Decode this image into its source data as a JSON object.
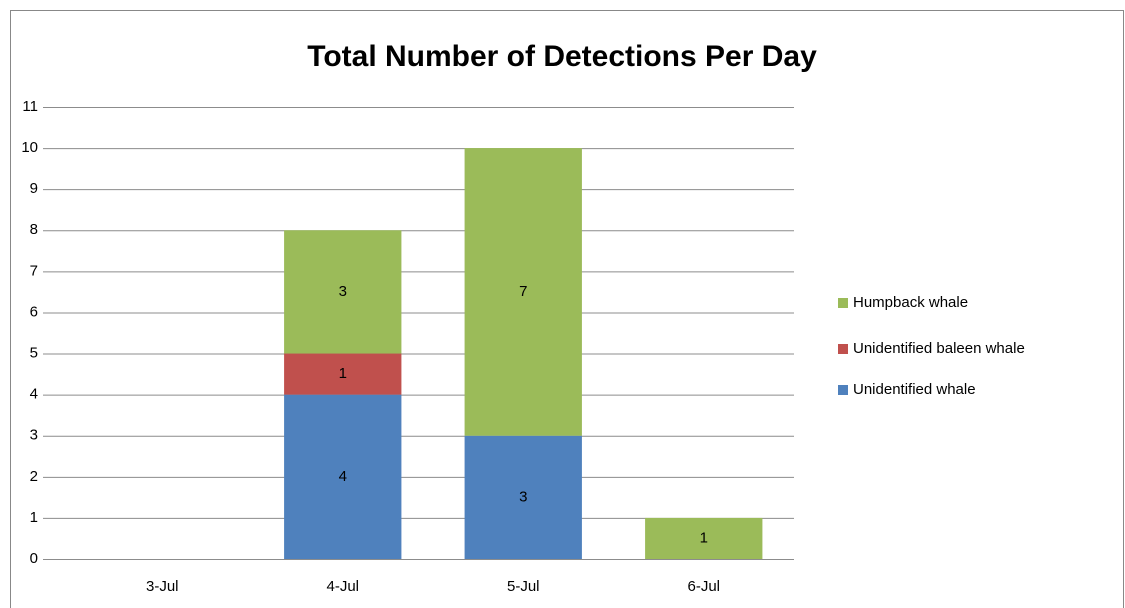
{
  "chart_data": {
    "type": "stacked_bar",
    "title": "Total Number of Detections Per Day",
    "categories": [
      "3-Jul",
      "4-Jul",
      "5-Jul",
      "6-Jul"
    ],
    "series": [
      {
        "name": "Unidentified whale",
        "color": "#4f81bd",
        "values": [
          null,
          4,
          3,
          null
        ]
      },
      {
        "name": "Unidentified baleen whale",
        "color": "#c0504d",
        "values": [
          null,
          1,
          null,
          null
        ]
      },
      {
        "name": "Humpback whale",
        "color": "#9bbb59",
        "values": [
          null,
          3,
          7,
          1
        ]
      }
    ],
    "ylim": [
      0,
      11
    ],
    "yticks": [
      0,
      1,
      2,
      3,
      4,
      5,
      6,
      7,
      8,
      9,
      10,
      11
    ],
    "grid": true,
    "legend": "right"
  }
}
